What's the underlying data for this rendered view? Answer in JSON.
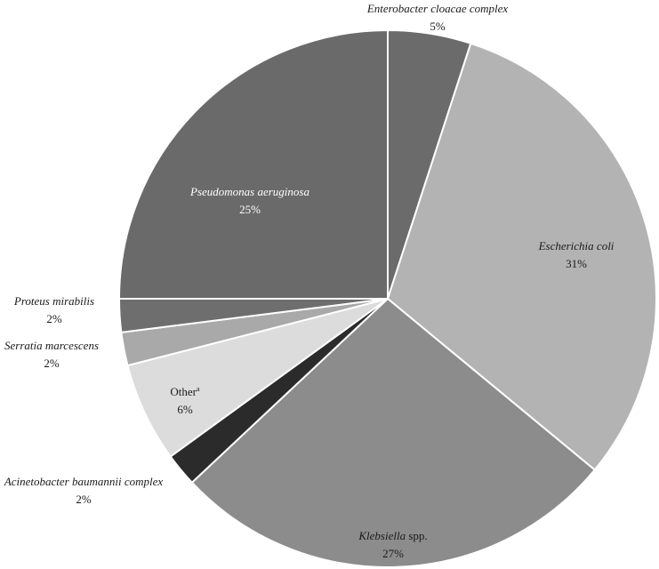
{
  "chart_data": {
    "type": "pie",
    "title": "",
    "legend": "none",
    "slices": [
      {
        "name": "Enterobacter cloacae complex",
        "name_italic": "Enterobacter cloacae complex",
        "name_roman": "",
        "sup": "",
        "value": 5,
        "label": "5%",
        "color": "#6b6b6b",
        "text_color": "#1a1a1a"
      },
      {
        "name": "Escherichia coli",
        "name_italic": "Escherichia coli",
        "name_roman": "",
        "sup": "",
        "value": 31,
        "label": "31%",
        "color": "#b3b3b3",
        "text_color": "#1a1a1a"
      },
      {
        "name": "Klebsiella spp.",
        "name_italic": "Klebsiella",
        "name_roman": " spp.",
        "sup": "",
        "value": 27,
        "label": "27%",
        "color": "#8c8c8c",
        "text_color": "#1a1a1a"
      },
      {
        "name": "Acinetobacter baumannii complex",
        "name_italic": "Acinetobacter baumannii complex",
        "name_roman": "",
        "sup": "",
        "value": 2,
        "label": "2%",
        "color": "#2b2b2b",
        "text_color": "#1a1a1a"
      },
      {
        "name": "Other",
        "name_italic": "",
        "name_roman": "Other",
        "sup": "a",
        "value": 6,
        "label": "6%",
        "color": "#dcdcdc",
        "text_color": "#1a1a1a"
      },
      {
        "name": "Serratia marcescens",
        "name_italic": "Serratia marcescens",
        "name_roman": "",
        "sup": "",
        "value": 2,
        "label": "2%",
        "color": "#a9a9a9",
        "text_color": "#1a1a1a"
      },
      {
        "name": "Proteus mirabilis",
        "name_italic": "Proteus mirabilis",
        "name_roman": "",
        "sup": "",
        "value": 2,
        "label": "2%",
        "color": "#6e6e6e",
        "text_color": "#1a1a1a"
      },
      {
        "name": "Pseudomonas aeruginosa",
        "name_italic": "Pseudomonas aeruginosa",
        "name_roman": "",
        "sup": "",
        "value": 25,
        "label": "25%",
        "color": "#6a6a6a",
        "text_color": "#ffffff"
      }
    ]
  }
}
